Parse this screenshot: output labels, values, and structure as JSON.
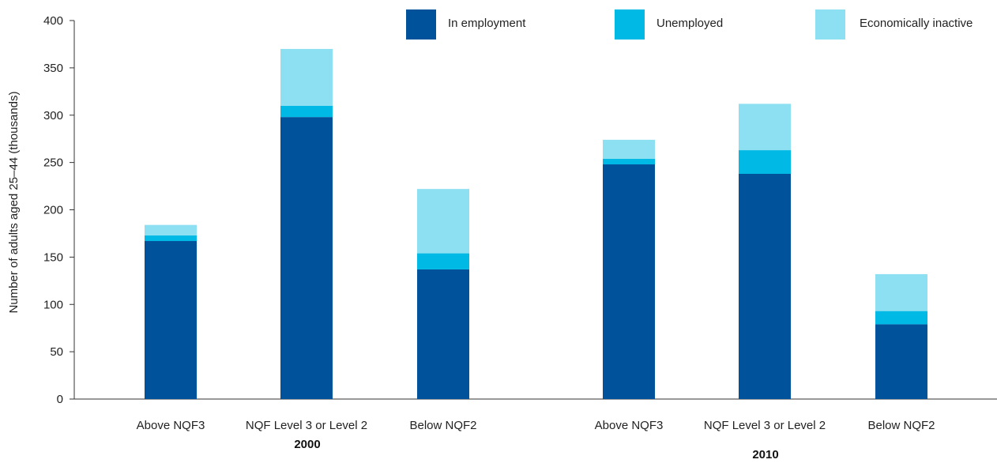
{
  "chart_data": {
    "type": "bar",
    "stacked": true,
    "ylabel": "Number of adults aged 25–44 (thousands)",
    "xlabel": "",
    "ylim": [
      0,
      400
    ],
    "yticks": [
      "0",
      "50",
      "100",
      "150",
      "200",
      "250",
      "300",
      "350",
      "400"
    ],
    "grid": false,
    "legend_position": "top-right",
    "groups": [
      {
        "label": "2000",
        "categories": [
          "Above NQF3",
          "NQF Level 3 or Level 2",
          "Below NQF2"
        ]
      },
      {
        "label": "2010",
        "categories": [
          "Above NQF3",
          "NQF Level 3 or Level 2",
          "Below NQF2"
        ]
      }
    ],
    "series": [
      {
        "name": "In employment",
        "color": "#00529B",
        "values": [
          167,
          298,
          137,
          248,
          238,
          79
        ]
      },
      {
        "name": "Unemployed",
        "color": "#00B9E4",
        "values": [
          6,
          12,
          17,
          6,
          25,
          14
        ]
      },
      {
        "name": "Economically inactive",
        "color": "#8CE0F2",
        "values": [
          11,
          60,
          68,
          20,
          49,
          39
        ]
      }
    ]
  }
}
